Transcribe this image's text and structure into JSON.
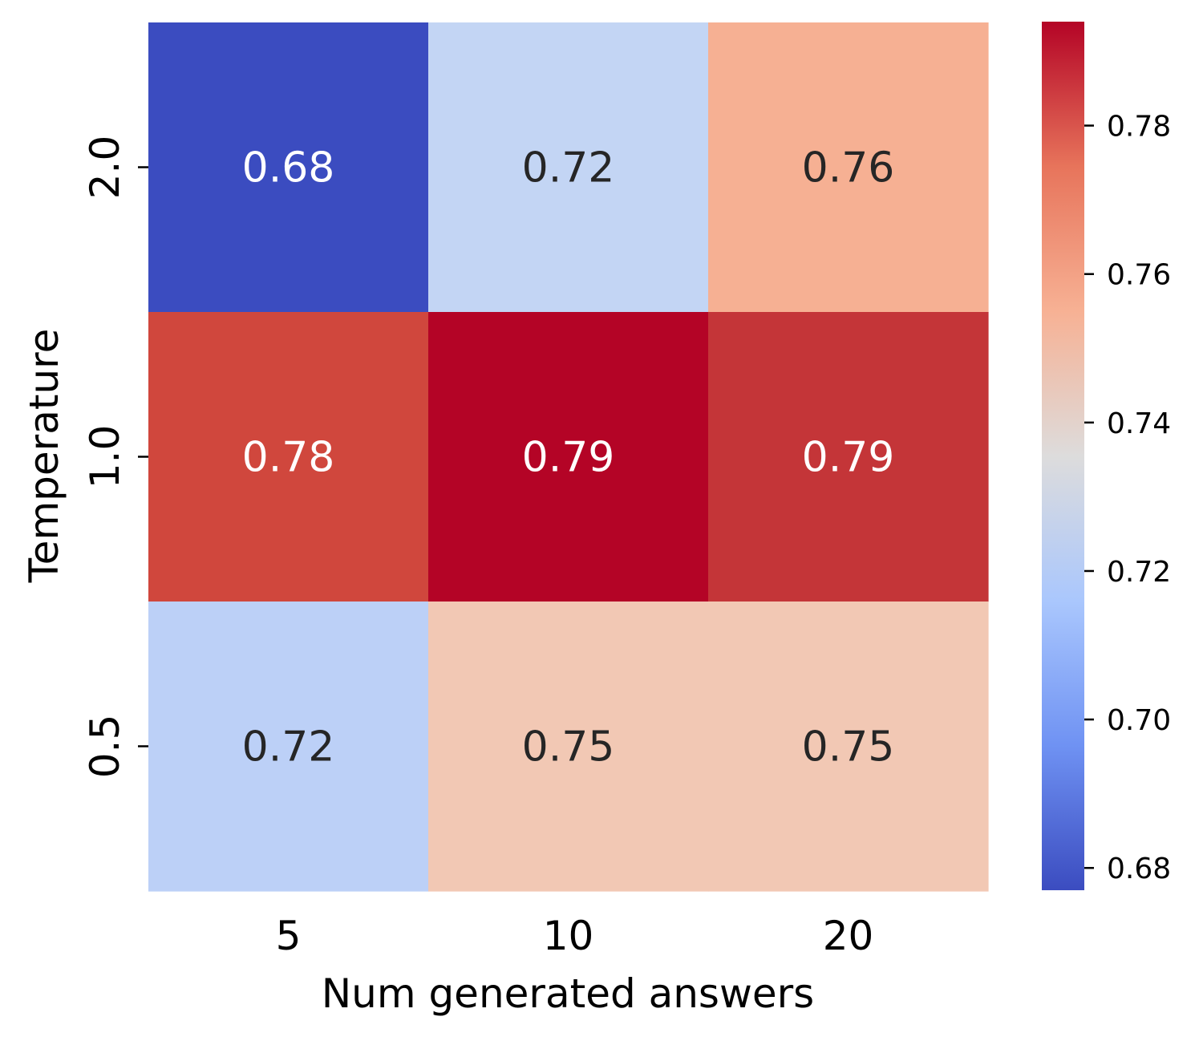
{
  "chart_data": {
    "type": "heatmap",
    "title": "",
    "xlabel": "Num generated answers",
    "ylabel": "Temperature",
    "x_categories": [
      "5",
      "10",
      "20"
    ],
    "y_categories": [
      "2.0",
      "1.0",
      "0.5"
    ],
    "values": [
      [
        0.68,
        0.72,
        0.76
      ],
      [
        0.78,
        0.79,
        0.79
      ],
      [
        0.72,
        0.75,
        0.75
      ]
    ],
    "value_labels": [
      [
        "0.68",
        "0.72",
        "0.76"
      ],
      [
        "0.78",
        "0.79",
        "0.79"
      ],
      [
        "0.72",
        "0.75",
        "0.75"
      ]
    ],
    "cell_colors": [
      [
        "#3b4cc0",
        "#c3d5f4",
        "#f6b093"
      ],
      [
        "#d0473d",
        "#b40426",
        "#c43538"
      ],
      [
        "#bcd0f7",
        "#ffffff",
        "#f2c8b4"
      ]
    ],
    "label_colors": [
      [
        "#ffffff",
        "#262626",
        "#262626"
      ],
      [
        "#ffffff",
        "#ffffff",
        "#ffffff"
      ],
      [
        "#262626",
        "#262626",
        "#262626"
      ]
    ],
    "colormap": "coolwarm",
    "colorbar": {
      "range": [
        0.677,
        0.794
      ],
      "ticks": [
        "0.68",
        "0.70",
        "0.72",
        "0.74",
        "0.76",
        "0.78"
      ],
      "tick_values": [
        0.68,
        0.7,
        0.72,
        0.74,
        0.76,
        0.78
      ],
      "stops": [
        "#3b4cc0",
        "#6f92f3",
        "#aac7fd",
        "#dddcdc",
        "#f7b194",
        "#e7745b",
        "#b40426"
      ]
    }
  }
}
